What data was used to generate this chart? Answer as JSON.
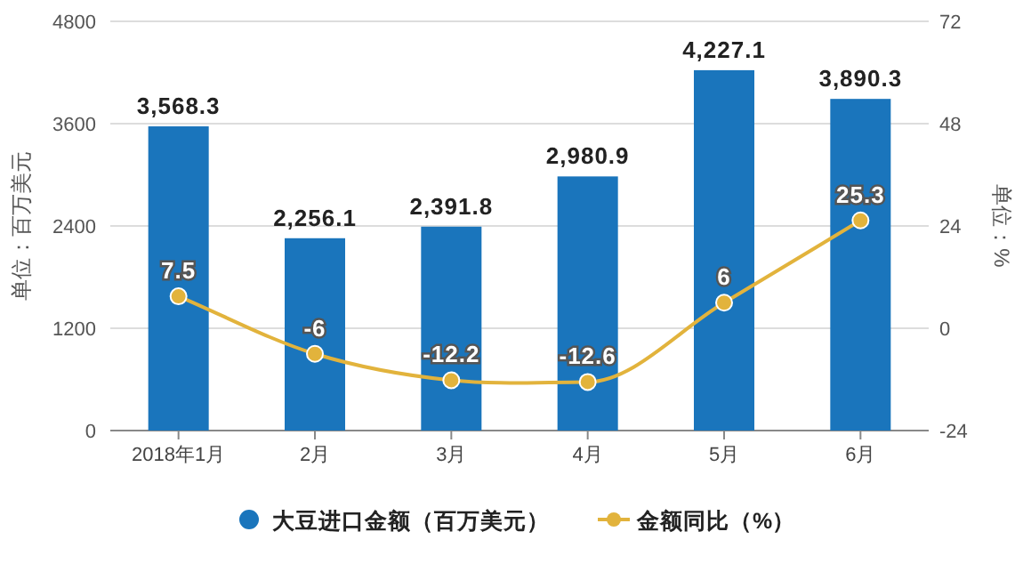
{
  "chart_data": {
    "type": "bar",
    "categories": [
      "2018年1月",
      "2月",
      "3月",
      "4月",
      "5月",
      "6月"
    ],
    "ylabel": "单位：百万美元",
    "y2label": "单位：%",
    "ylim": [
      0,
      4800
    ],
    "yticks": [
      0,
      1200,
      2400,
      3600,
      4800
    ],
    "y2lim": [
      -24,
      72
    ],
    "y2ticks": [
      -24,
      0,
      24,
      48,
      72
    ],
    "grid": "y",
    "legend": "bottom",
    "marker": "circle",
    "series": [
      {
        "name": "大豆进口金额（百万美元）",
        "color": "#1a75bc",
        "values": [
          3568.3,
          2256.1,
          2391.8,
          2980.9,
          4227.1,
          3890.3
        ],
        "value_labels": [
          "3,568.3",
          "2,256.1",
          "2,391.8",
          "2,980.9",
          "4,227.1",
          "3,890.3"
        ]
      },
      {
        "name": "金额同比（%）",
        "type": "line",
        "axis": "y2",
        "color": "#e2b33c",
        "values": [
          7.5,
          -6,
          -12.2,
          -12.6,
          6,
          25.3
        ],
        "value_labels": [
          "7.5",
          "-6",
          "-12.2",
          "-12.6",
          "6",
          "25.3"
        ]
      }
    ]
  }
}
